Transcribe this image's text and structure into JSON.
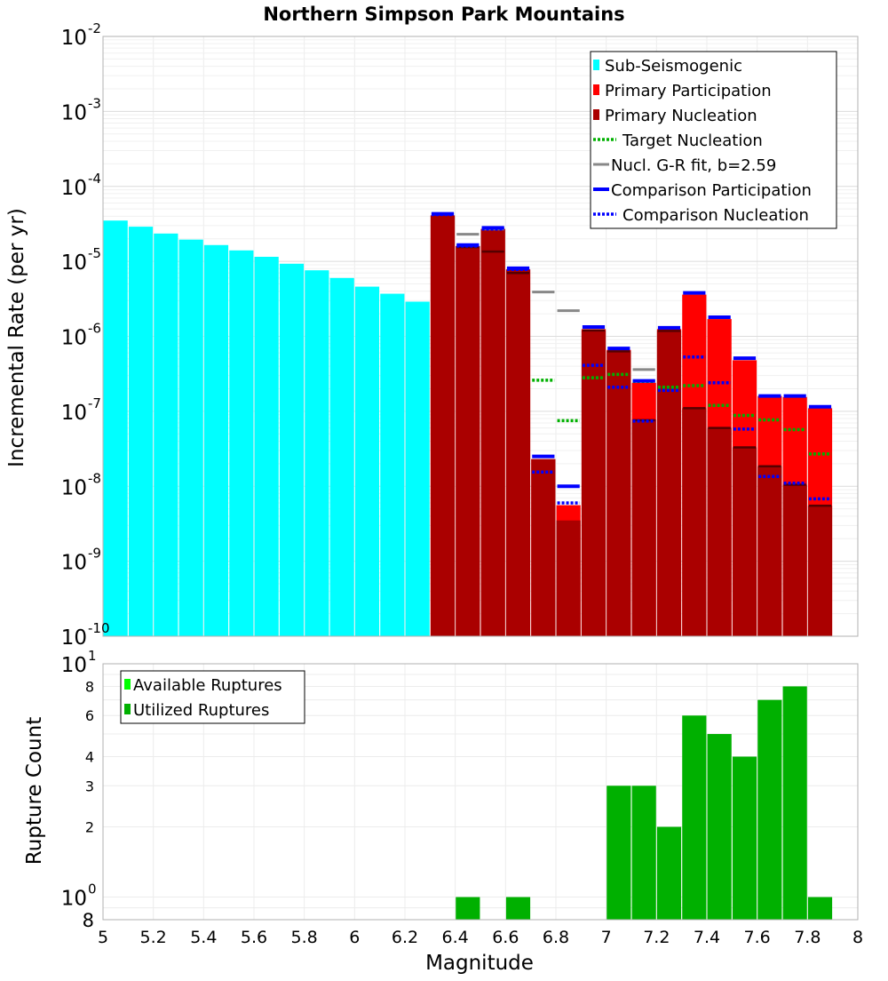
{
  "chart_data": [
    {
      "type": "bar",
      "title": "Northern Simpson Park Mountains",
      "ylabel": "Incremental Rate (per yr)",
      "xlabel": "",
      "yscale": "log",
      "ylim": [
        1e-10,
        0.01
      ],
      "xlim": [
        5,
        8
      ],
      "y_ticks": [
        {
          "base": "10",
          "exp": "-10"
        },
        {
          "base": "10",
          "exp": "-9"
        },
        {
          "base": "10",
          "exp": "-8"
        },
        {
          "base": "10",
          "exp": "-7"
        },
        {
          "base": "10",
          "exp": "-6"
        },
        {
          "base": "10",
          "exp": "-5"
        },
        {
          "base": "10",
          "exp": "-4"
        },
        {
          "base": "10",
          "exp": "-3"
        },
        {
          "base": "10",
          "exp": "-2"
        }
      ],
      "legend_position": "top-right",
      "legend": [
        {
          "label": "Sub-Seismogenic",
          "color": "#00ffff",
          "style": "bar"
        },
        {
          "label": "Primary Participation",
          "color": "#ff0000",
          "style": "bar"
        },
        {
          "label": "Primary Nucleation",
          "color": "#aa0000",
          "style": "bar"
        },
        {
          "label": "Target Nucleation",
          "color": "#00b000",
          "style": "dotted"
        },
        {
          "label": "Nucl. G-R fit, b=2.59",
          "color": "#888888",
          "style": "solid"
        },
        {
          "label": "Comparison Participation",
          "color": "#0000ff",
          "style": "solid-thick"
        },
        {
          "label": "Comparison Nucleation",
          "color": "#0000ff",
          "style": "dotted"
        }
      ],
      "series": [
        {
          "name": "Sub-Seismogenic",
          "color": "#00ffff",
          "x": [
            5.05,
            5.15,
            5.25,
            5.35,
            5.45,
            5.55,
            5.65,
            5.75,
            5.85,
            5.95,
            6.05,
            6.15,
            6.25
          ],
          "values": [
            3.5e-05,
            2.9e-05,
            2.35e-05,
            1.95e-05,
            1.65e-05,
            1.4e-05,
            1.15e-05,
            9.3e-06,
            7.6e-06,
            6e-06,
            4.6e-06,
            3.7e-06,
            2.9e-06
          ]
        },
        {
          "name": "Primary Participation",
          "color": "#ff0000",
          "x": [
            6.35,
            6.45,
            6.55,
            6.65,
            6.75,
            6.85,
            6.95,
            7.05,
            7.15,
            7.25,
            7.35,
            7.45,
            7.55,
            7.65,
            7.75,
            7.85
          ],
          "values": [
            4.1e-05,
            1.6e-05,
            2.7e-05,
            7.8e-06,
            2.3e-08,
            5.6e-09,
            1.25e-06,
            6.6e-07,
            2.4e-07,
            1.25e-06,
            3.6e-06,
            1.7e-06,
            4.8e-07,
            1.6e-07,
            1.55e-07,
            1.1e-07
          ]
        },
        {
          "name": "Primary Nucleation",
          "color": "#aa0000",
          "x": [
            6.35,
            6.45,
            6.55,
            6.65,
            6.75,
            6.85,
            6.95,
            7.05,
            7.15,
            7.25,
            7.35,
            7.45,
            7.55,
            7.65,
            7.75,
            7.85
          ],
          "values": [
            4.1e-05,
            1.6e-05,
            2.7e-05,
            7.8e-06,
            2.3e-08,
            3.5e-09,
            1.2e-06,
            6.4e-07,
            7.8e-08,
            1.2e-06,
            1.1e-07,
            6e-08,
            3.3e-08,
            1.85e-08,
            1.05e-08,
            5.5e-09
          ]
        },
        {
          "name": "Primary Nucleation tick",
          "color": "#550000",
          "x": [
            6.45,
            6.55,
            6.65,
            6.95,
            7.05,
            7.15,
            7.25,
            7.35,
            7.45,
            7.55,
            7.65,
            7.75,
            7.85
          ],
          "values": [
            1.55e-05,
            1.35e-05,
            7e-06,
            1.2e-06,
            6.3e-07,
            7.6e-08,
            1.18e-06,
            1.1e-07,
            6e-08,
            3.3e-08,
            1.85e-08,
            1.05e-08,
            5.5e-09
          ]
        },
        {
          "name": "Target Nucleation",
          "color": "#00b000",
          "x": [
            6.75,
            6.85,
            6.95,
            7.05,
            7.15,
            7.25,
            7.35,
            7.45,
            7.55,
            7.65,
            7.75,
            7.85
          ],
          "values": [
            2.6e-07,
            7.5e-08,
            2.8e-07,
            3.1e-07,
            2.5e-07,
            2.1e-07,
            2.2e-07,
            1.2e-07,
            8.8e-08,
            7.7e-08,
            5.7e-08,
            2.7e-08
          ]
        },
        {
          "name": "Nucl. G-R fit, b=2.59",
          "color": "#888888",
          "x": [
            6.45,
            6.55,
            6.75,
            6.85,
            7.15
          ],
          "values": [
            2.3e-05,
            2.7e-05,
            3.9e-06,
            2.2e-06,
            3.6e-07
          ]
        },
        {
          "name": "Comparison Participation",
          "color": "#0000ff",
          "x": [
            6.35,
            6.45,
            6.55,
            6.65,
            6.75,
            6.85,
            6.95,
            7.05,
            7.15,
            7.25,
            7.35,
            7.45,
            7.55,
            7.65,
            7.75,
            7.85
          ],
          "values": [
            4.3e-05,
            1.65e-05,
            2.8e-05,
            8.1e-06,
            2.5e-08,
            1e-08,
            1.33e-06,
            6.9e-07,
            2.55e-07,
            1.3e-06,
            3.8e-06,
            1.8e-06,
            5.1e-07,
            1.6e-07,
            1.6e-07,
            1.15e-07
          ]
        },
        {
          "name": "Comparison Nucleation",
          "color": "#0000ff",
          "x": [
            6.35,
            6.45,
            6.55,
            6.65,
            6.75,
            6.85,
            6.95,
            7.05,
            7.15,
            7.25,
            7.35,
            7.45,
            7.55,
            7.65,
            7.75,
            7.85
          ],
          "values": [
            4.2e-05,
            1.6e-05,
            2.7e-05,
            7.8e-06,
            1.55e-08,
            6e-09,
            4.1e-07,
            2.1e-07,
            7.4e-08,
            1.9e-07,
            5.3e-07,
            2.4e-07,
            5.8e-08,
            1.35e-08,
            1.1e-08,
            6.8e-09
          ]
        }
      ]
    },
    {
      "type": "bar",
      "title": "",
      "ylabel": "Rupture Count",
      "xlabel": "Magnitude",
      "yscale": "log",
      "ylim": [
        0.8,
        10
      ],
      "xlim": [
        5,
        8
      ],
      "x_ticks": [
        "5",
        "5.2",
        "5.4",
        "5.6",
        "5.8",
        "6",
        "6.2",
        "6.4",
        "6.6",
        "6.8",
        "7",
        "7.2",
        "7.4",
        "7.6",
        "7.8",
        "8"
      ],
      "y_ticks": [
        {
          "value": 1,
          "base": "10",
          "exp": "0"
        },
        {
          "value": 10,
          "base": "10",
          "exp": "1"
        }
      ],
      "y_minor_ticks": [
        {
          "value": 0.8,
          "label": "8"
        },
        {
          "value": 2,
          "label": "2"
        },
        {
          "value": 3,
          "label": "3"
        },
        {
          "value": 4,
          "label": "4"
        },
        {
          "value": 6,
          "label": "6"
        },
        {
          "value": 8,
          "label": "8"
        }
      ],
      "legend_position": "top-left",
      "legend": [
        {
          "label": "Available Ruptures",
          "color": "#00ff00"
        },
        {
          "label": "Utilized Ruptures",
          "color": "#00b000"
        }
      ],
      "series": [
        {
          "name": "Utilized Ruptures",
          "color": "#00b000",
          "x": [
            6.45,
            6.65,
            7.05,
            7.15,
            7.25,
            7.35,
            7.45,
            7.55,
            7.65,
            7.75,
            7.85
          ],
          "values": [
            1,
            1,
            3,
            3,
            2,
            6,
            5,
            4,
            7,
            8,
            1
          ]
        }
      ]
    }
  ]
}
